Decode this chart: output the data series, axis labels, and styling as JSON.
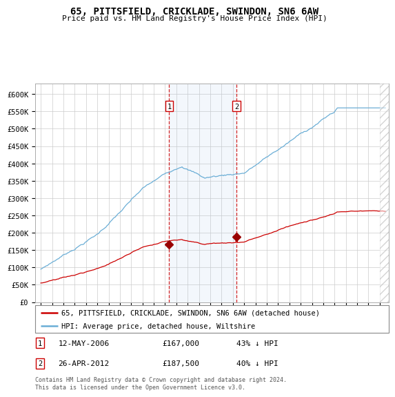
{
  "title": "65, PITTSFIELD, CRICKLADE, SWINDON, SN6 6AW",
  "subtitle": "Price paid vs. HM Land Registry's House Price Index (HPI)",
  "ylabel_ticks": [
    "£0",
    "£50K",
    "£100K",
    "£150K",
    "£200K",
    "£250K",
    "£300K",
    "£350K",
    "£400K",
    "£450K",
    "£500K",
    "£550K",
    "£600K"
  ],
  "ytick_vals": [
    0,
    50000,
    100000,
    150000,
    200000,
    250000,
    300000,
    350000,
    400000,
    450000,
    500000,
    550000,
    600000
  ],
  "ylim": [
    0,
    630000
  ],
  "xlim_start": 1994.5,
  "xlim_end": 2025.8,
  "hpi_color": "#6baed6",
  "price_color": "#cc0000",
  "marker_color": "#990000",
  "grid_color": "#cccccc",
  "transaction1_x": 2006.36,
  "transaction1_y": 167000,
  "transaction2_x": 2012.32,
  "transaction2_y": 187500,
  "transaction1_label": "12-MAY-2006",
  "transaction1_price": "£167,000",
  "transaction1_hpi": "43% ↓ HPI",
  "transaction2_label": "26-APR-2012",
  "transaction2_price": "£187,500",
  "transaction2_hpi": "40% ↓ HPI",
  "legend_line1": "65, PITTSFIELD, CRICKLADE, SWINDON, SN6 6AW (detached house)",
  "legend_line2": "HPI: Average price, detached house, Wiltshire",
  "footer": "Contains HM Land Registry data © Crown copyright and database right 2024.\nThis data is licensed under the Open Government Licence v3.0."
}
